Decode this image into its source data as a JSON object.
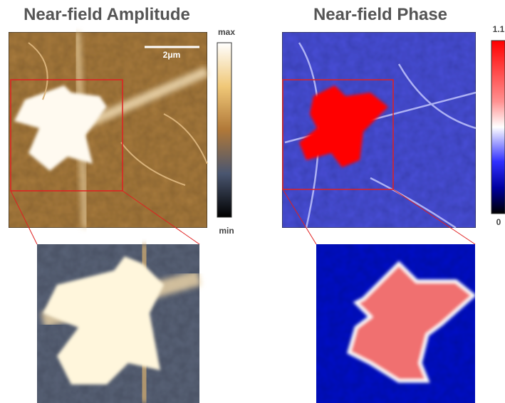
{
  "amplitude_panel": {
    "title": "Near-field Amplitude",
    "scale_bar": "2μm",
    "colorbar": {
      "max_label": "max",
      "min_label": "min"
    }
  },
  "phase_panel": {
    "title": "Near-field Phase",
    "colorbar": {
      "max_label": "1.1",
      "min_label": "0"
    }
  }
}
